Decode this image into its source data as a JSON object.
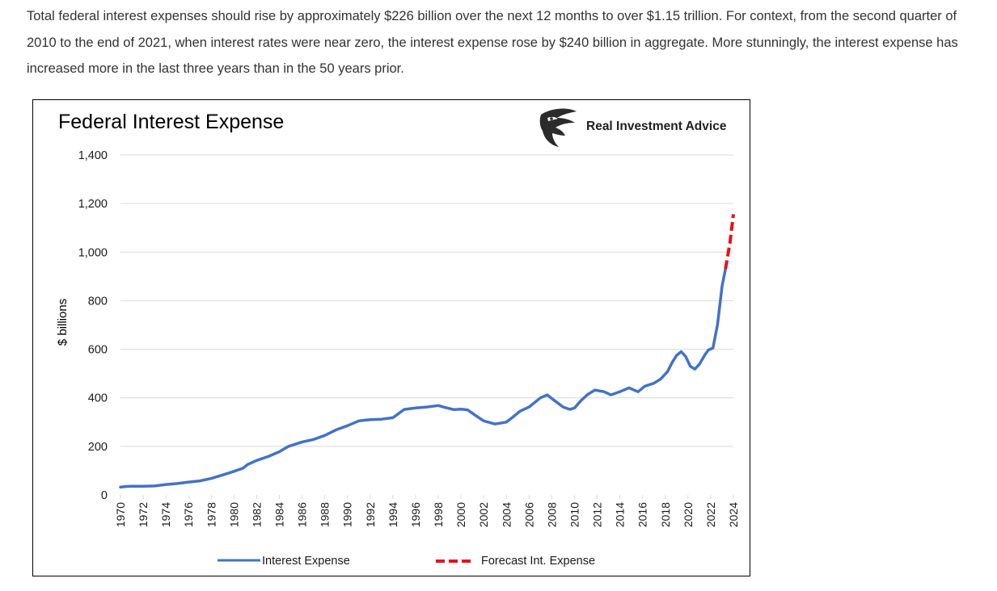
{
  "article": {
    "paragraph": "Total federal interest expenses should rise by approximately $226 billion over the next 12 months to over $1.15 trillion. For context, from the second quarter of 2010 to the end of 2021, when interest rates were near zero, the interest expense rose by $240 billion in aggregate. More stunningly, the interest expense has increased more in the last three years than in the 50 years prior."
  },
  "brand": {
    "name": "Real Investment Advice",
    "logo_icon": "eagle-head-icon"
  },
  "colors": {
    "series_actual": "#4472C4",
    "series_forecast": "#E8101C",
    "gridline": "#D9D9D9",
    "text": "#000000"
  },
  "chart_data": {
    "type": "line",
    "title": "Federal Interest Expense",
    "xlabel": "",
    "ylabel": "$ billions",
    "ylim": [
      0,
      1400
    ],
    "yticks": [
      0,
      200,
      400,
      600,
      800,
      1000,
      1200,
      1400
    ],
    "ytick_labels": [
      "0",
      "200",
      "400",
      "600",
      "800",
      "1,000",
      "1,200",
      "1,400"
    ],
    "xlim": [
      1970,
      2024
    ],
    "xticks": [
      "1970",
      "1972",
      "1974",
      "1976",
      "1978",
      "1980",
      "1982",
      "1984",
      "1986",
      "1988",
      "1990",
      "1992",
      "1994",
      "1996",
      "1998",
      "2000",
      "2002",
      "2004",
      "2006",
      "2008",
      "2010",
      "2012",
      "2014",
      "2016",
      "2018",
      "2020",
      "2022",
      "2024"
    ],
    "grid": "horizontal",
    "legend_position": "bottom",
    "series": [
      {
        "name": "Interest Expense",
        "style": "solid",
        "points": [
          [
            1970.0,
            32
          ],
          [
            1970.5,
            35
          ],
          [
            1971.0,
            36
          ],
          [
            1972.0,
            36
          ],
          [
            1973.0,
            37
          ],
          [
            1974.0,
            43
          ],
          [
            1975.0,
            47
          ],
          [
            1976.0,
            53
          ],
          [
            1977.0,
            58
          ],
          [
            1978.0,
            68
          ],
          [
            1979.0,
            82
          ],
          [
            1980.0,
            97
          ],
          [
            1980.8,
            110
          ],
          [
            1981.2,
            125
          ],
          [
            1982.0,
            142
          ],
          [
            1983.0,
            158
          ],
          [
            1984.0,
            178
          ],
          [
            1984.8,
            200
          ],
          [
            1986.0,
            218
          ],
          [
            1987.0,
            228
          ],
          [
            1988.0,
            245
          ],
          [
            1989.0,
            268
          ],
          [
            1990.0,
            285
          ],
          [
            1991.0,
            305
          ],
          [
            1992.0,
            310
          ],
          [
            1993.0,
            312
          ],
          [
            1994.0,
            318
          ],
          [
            1995.0,
            352
          ],
          [
            1996.0,
            358
          ],
          [
            1997.0,
            362
          ],
          [
            1998.0,
            368
          ],
          [
            1998.6,
            360
          ],
          [
            1999.4,
            351
          ],
          [
            2000.0,
            353
          ],
          [
            2000.6,
            350
          ],
          [
            2001.2,
            330
          ],
          [
            2002.0,
            305
          ],
          [
            2003.0,
            292
          ],
          [
            2004.0,
            300
          ],
          [
            2004.6,
            322
          ],
          [
            2005.2,
            345
          ],
          [
            2006.0,
            362
          ],
          [
            2007.0,
            400
          ],
          [
            2007.6,
            412
          ],
          [
            2008.2,
            390
          ],
          [
            2009.0,
            362
          ],
          [
            2009.6,
            352
          ],
          [
            2010.0,
            358
          ],
          [
            2010.6,
            390
          ],
          [
            2011.2,
            415
          ],
          [
            2011.8,
            432
          ],
          [
            2012.6,
            425
          ],
          [
            2013.2,
            412
          ],
          [
            2014.0,
            425
          ],
          [
            2014.8,
            441
          ],
          [
            2015.6,
            425
          ],
          [
            2016.2,
            448
          ],
          [
            2017.0,
            460
          ],
          [
            2017.6,
            478
          ],
          [
            2018.2,
            508
          ],
          [
            2018.6,
            545
          ],
          [
            2019.0,
            575
          ],
          [
            2019.4,
            590
          ],
          [
            2019.8,
            570
          ],
          [
            2020.2,
            530
          ],
          [
            2020.6,
            518
          ],
          [
            2021.0,
            538
          ],
          [
            2021.5,
            578
          ],
          [
            2021.8,
            597
          ],
          [
            2022.2,
            605
          ],
          [
            2022.6,
            700
          ],
          [
            2023.0,
            860
          ],
          [
            2023.3,
            930
          ]
        ]
      },
      {
        "name": "Forecast Int. Expense",
        "style": "dashed",
        "points": [
          [
            2023.3,
            930
          ],
          [
            2023.7,
            1040
          ],
          [
            2024.0,
            1156
          ]
        ]
      }
    ]
  }
}
